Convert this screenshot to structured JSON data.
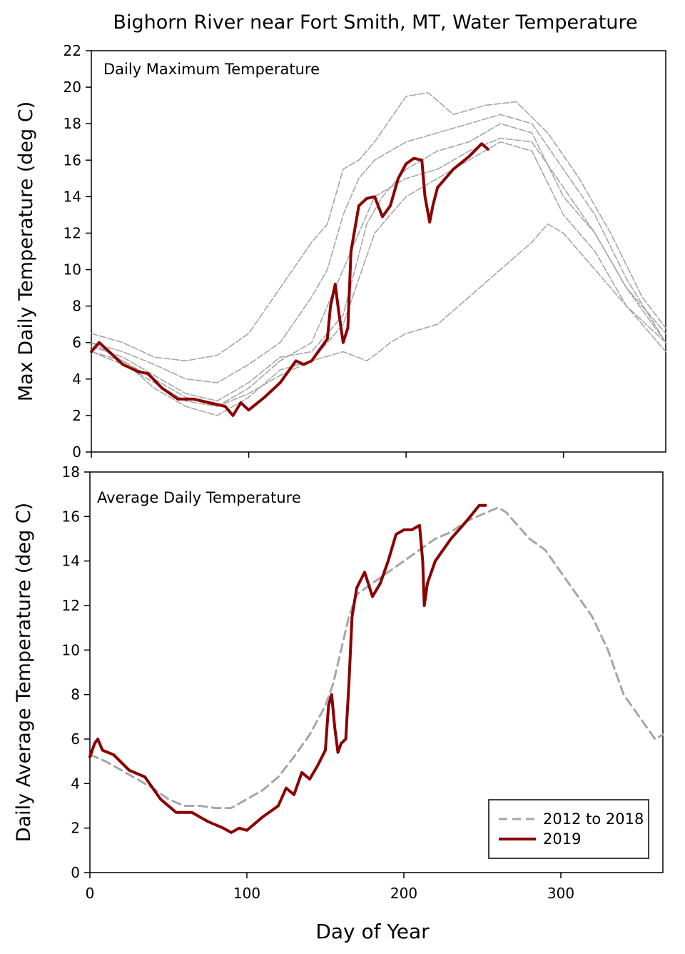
{
  "title": "Bighorn River near Fort Smith, MT, Water Temperature",
  "xlabel": "Day of Year",
  "colors": {
    "history": "#a6a6a6",
    "current": "#8b0000",
    "axis": "#000000"
  },
  "legend": {
    "history_label": "2012 to 2018",
    "current_label": "2019"
  },
  "chart_data": [
    {
      "type": "line",
      "panel_label": "Daily Maximum Temperature",
      "ylabel": "Max Daily Temperature (deg C)",
      "xlim": [
        0,
        365
      ],
      "ylim": [
        0,
        22
      ],
      "x_ticks": [
        0,
        100,
        200,
        300
      ],
      "y_ticks": [
        0,
        2,
        4,
        6,
        8,
        10,
        12,
        14,
        16,
        18,
        20,
        22
      ],
      "series": [
        {
          "name": "2012 to 2018",
          "style": "thin-gray",
          "x": [
            0,
            20,
            40,
            60,
            80,
            100,
            120,
            140,
            150,
            160,
            170,
            180,
            200,
            214,
            230,
            250,
            270,
            290,
            310,
            330,
            350,
            365
          ],
          "y": [
            6.5,
            6.0,
            5.2,
            5.0,
            5.3,
            6.5,
            9.0,
            11.5,
            12.5,
            15.5,
            16.0,
            17.0,
            19.5,
            19.7,
            18.5,
            19.0,
            19.2,
            17.5,
            15.0,
            12.0,
            8.5,
            6.8
          ]
        },
        {
          "style": "thin-gray",
          "x": [
            0,
            20,
            40,
            60,
            80,
            100,
            120,
            140,
            150,
            160,
            170,
            180,
            200,
            220,
            240,
            260,
            280,
            300,
            320,
            340,
            365
          ],
          "y": [
            6.0,
            5.5,
            4.8,
            4.0,
            3.8,
            4.8,
            6.0,
            8.5,
            10.0,
            13.0,
            15.0,
            16.0,
            17.0,
            17.5,
            18.0,
            18.5,
            18.0,
            15.5,
            13.0,
            9.5,
            6.0
          ]
        },
        {
          "style": "thin-gray",
          "x": [
            0,
            20,
            40,
            60,
            80,
            100,
            120,
            140,
            160,
            180,
            200,
            220,
            240,
            260,
            280,
            300,
            320,
            340,
            365
          ],
          "y": [
            5.5,
            5.0,
            4.0,
            3.0,
            2.5,
            3.5,
            5.0,
            6.0,
            10.0,
            14.0,
            15.0,
            15.5,
            16.5,
            17.2,
            17.0,
            14.5,
            12.0,
            9.0,
            6.5
          ]
        },
        {
          "style": "thin-gray",
          "x": [
            0,
            20,
            40,
            60,
            80,
            100,
            120,
            140,
            160,
            180,
            200,
            220,
            240,
            260,
            280,
            300,
            320,
            340,
            365
          ],
          "y": [
            6.0,
            5.0,
            3.5,
            2.5,
            2.0,
            3.0,
            4.5,
            5.0,
            7.0,
            12.0,
            14.0,
            15.0,
            16.0,
            17.0,
            16.5,
            13.0,
            11.0,
            8.0,
            5.5
          ]
        },
        {
          "style": "thin-gray",
          "x": [
            0,
            20,
            40,
            60,
            80,
            100,
            120,
            140,
            160,
            175,
            185,
            200,
            220,
            240,
            260,
            280,
            300,
            320,
            340,
            365
          ],
          "y": [
            5.8,
            5.2,
            4.2,
            3.2,
            2.8,
            3.8,
            5.2,
            5.5,
            7.5,
            12.5,
            14.0,
            15.5,
            16.5,
            17.0,
            18.0,
            17.5,
            14.0,
            12.0,
            9.0,
            6.0
          ]
        },
        {
          "style": "thin-gray",
          "x": [
            0,
            20,
            40,
            60,
            80,
            100,
            120,
            140,
            160,
            175,
            183,
            190,
            200,
            220,
            240,
            260,
            280,
            290,
            300,
            320,
            340,
            365
          ],
          "y": [
            5.5,
            4.8,
            3.8,
            2.8,
            2.5,
            3.2,
            4.2,
            5.0,
            5.5,
            5.0,
            5.5,
            6.0,
            6.5,
            7.0,
            8.5,
            10.0,
            11.5,
            12.5,
            12.0,
            10.0,
            8.0,
            6.0
          ]
        },
        {
          "name": "2019",
          "style": "thick-red",
          "x": [
            0,
            5,
            10,
            20,
            30,
            36,
            45,
            55,
            65,
            75,
            85,
            90,
            95,
            100,
            110,
            120,
            130,
            135,
            140,
            145,
            150,
            152,
            155,
            157,
            160,
            163,
            165,
            170,
            175,
            180,
            185,
            190,
            195,
            200,
            205,
            210,
            212,
            215,
            217,
            220,
            230,
            240,
            248,
            252
          ],
          "y": [
            5.5,
            6.0,
            5.6,
            4.8,
            4.4,
            4.3,
            3.5,
            2.9,
            2.9,
            2.7,
            2.5,
            2.0,
            2.7,
            2.3,
            3.0,
            3.8,
            5.0,
            4.8,
            5.0,
            5.6,
            6.2,
            8.0,
            9.2,
            7.8,
            6.0,
            6.8,
            11.0,
            13.5,
            13.9,
            14.0,
            12.9,
            13.5,
            15.0,
            15.8,
            16.1,
            16.0,
            14.0,
            12.6,
            13.5,
            14.5,
            15.5,
            16.2,
            16.9,
            16.6
          ]
        }
      ]
    },
    {
      "type": "line",
      "panel_label": "Average Daily Temperature",
      "ylabel": "Daily Average Temperature (deg C)",
      "xlim": [
        0,
        365
      ],
      "ylim": [
        0,
        18
      ],
      "x_ticks": [
        0,
        100,
        200,
        300
      ],
      "x_tick_labels": [
        "0",
        "100",
        "200",
        "300"
      ],
      "y_ticks": [
        0,
        2,
        4,
        6,
        8,
        10,
        12,
        14,
        16,
        18
      ],
      "legend": "bottom-right",
      "series": [
        {
          "name": "2012 to 2018",
          "style": "dashed-gray",
          "x": [
            0,
            10,
            20,
            30,
            40,
            50,
            60,
            70,
            80,
            90,
            100,
            110,
            120,
            130,
            140,
            150,
            155,
            160,
            165,
            170,
            180,
            190,
            200,
            210,
            220,
            230,
            240,
            250,
            260,
            265,
            270,
            280,
            290,
            300,
            310,
            320,
            330,
            340,
            350,
            360,
            365
          ],
          "y": [
            5.3,
            5.0,
            4.6,
            4.2,
            3.8,
            3.3,
            3.0,
            3.0,
            2.9,
            2.9,
            3.3,
            3.7,
            4.3,
            5.2,
            6.2,
            7.5,
            8.5,
            10.0,
            11.5,
            12.5,
            13.0,
            13.5,
            14.0,
            14.5,
            15.0,
            15.3,
            15.8,
            16.1,
            16.4,
            16.2,
            15.8,
            15.0,
            14.5,
            13.5,
            12.5,
            11.5,
            10.0,
            8.0,
            7.0,
            6.0,
            6.2
          ]
        },
        {
          "name": "2019",
          "style": "thick-red",
          "x": [
            0,
            3,
            5,
            8,
            15,
            25,
            35,
            45,
            55,
            65,
            75,
            85,
            90,
            95,
            100,
            110,
            120,
            125,
            130,
            135,
            140,
            145,
            150,
            152,
            154,
            156,
            158,
            160,
            163,
            165,
            167,
            170,
            175,
            180,
            185,
            190,
            195,
            200,
            205,
            210,
            212,
            213,
            215,
            220,
            230,
            240,
            248,
            252
          ],
          "y": [
            5.2,
            5.8,
            6.0,
            5.5,
            5.3,
            4.6,
            4.3,
            3.3,
            2.7,
            2.7,
            2.3,
            2.0,
            1.8,
            2.0,
            1.9,
            2.5,
            3.0,
            3.8,
            3.5,
            4.5,
            4.2,
            4.8,
            5.5,
            7.5,
            8.0,
            6.5,
            5.4,
            5.8,
            6.0,
            8.5,
            11.5,
            12.8,
            13.5,
            12.4,
            13.0,
            14.0,
            15.2,
            15.4,
            15.4,
            15.6,
            14.0,
            12.0,
            13.0,
            14.0,
            15.0,
            15.8,
            16.5,
            16.5
          ]
        }
      ]
    }
  ]
}
